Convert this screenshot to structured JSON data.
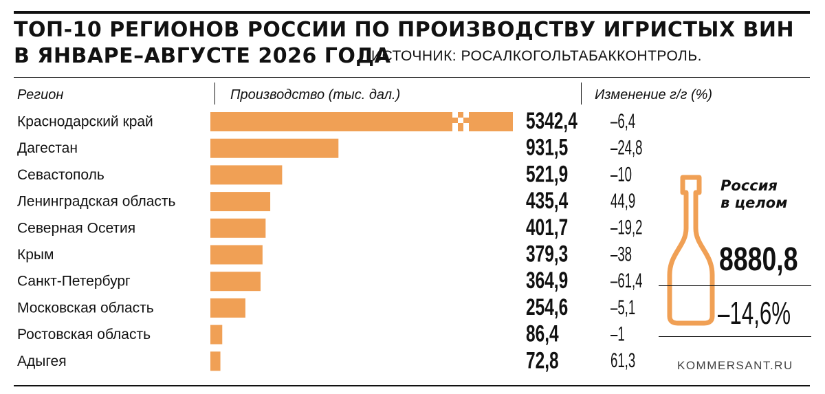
{
  "header": {
    "title_line1": "ТОП-10 РЕГИОНОВ РОССИИ ПО ПРОИЗВОДСТВУ ИГРИСТЫХ ВИН",
    "title_line2": "В ЯНВАРЕ–АВГУСТЕ 2026 ГОДА",
    "source": "ИСТОЧНИК: РОСАЛКОГОЛЬТАБАККОНТРОЛЬ."
  },
  "columns": {
    "region": "Регион",
    "production": "Производство (тыс. дал.)",
    "change": "Изменение г/г (%)"
  },
  "chart_data": {
    "type": "bar",
    "orientation": "horizontal",
    "categories": [
      "Краснодарский край",
      "Дагестан",
      "Севастополь",
      "Ленинградская область",
      "Северная Осетия",
      "Крым",
      "Санкт-Петербург",
      "Московская область",
      "Ростовская область",
      "Адыгея"
    ],
    "values": [
      5342.4,
      931.5,
      521.9,
      435.4,
      401.7,
      379.3,
      364.9,
      254.6,
      86.4,
      72.8
    ],
    "value_labels": [
      "5342,4",
      "931,5",
      "521,9",
      "435,4",
      "401,7",
      "379,3",
      "364,9",
      "254,6",
      "86,4",
      "72,8"
    ],
    "change_labels": [
      "–6,4",
      "–24,8",
      "–10",
      "44,9",
      "–19,2",
      "–38",
      "–61,4",
      "–5,1",
      "–1",
      "61,3"
    ],
    "changes": [
      -6.4,
      -24.8,
      -10,
      44.9,
      -19.2,
      -38,
      -61.4,
      -5.1,
      -1,
      61.3
    ],
    "bar_color": "#f0a055",
    "axis_break_on_first_bar": true,
    "grid": false
  },
  "total": {
    "label_line1": "Россия",
    "label_line2": "в целом",
    "value": "8880,8",
    "change": "–14,6%",
    "icon": "champagne-bottle-icon",
    "icon_color": "#f0a055"
  },
  "footer": {
    "site": "KOMMERSANT.RU"
  }
}
